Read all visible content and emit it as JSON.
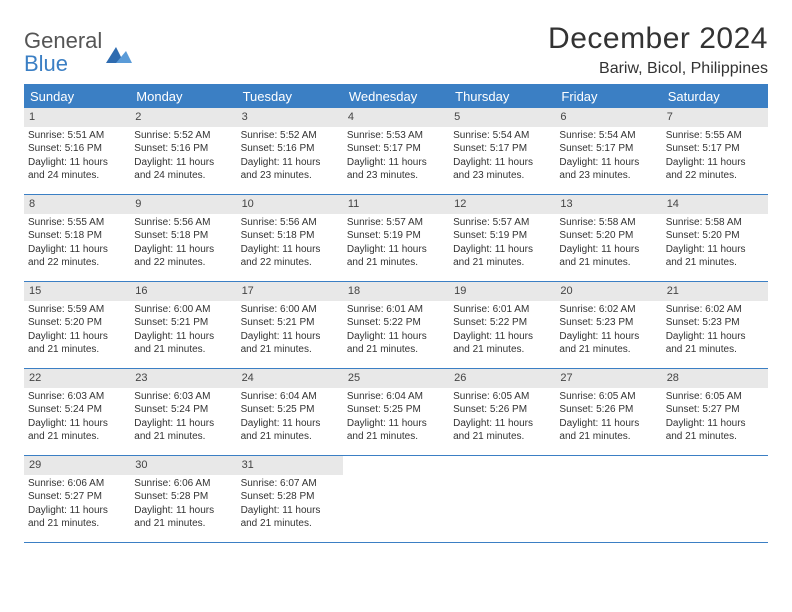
{
  "logo": {
    "text_general": "General",
    "text_blue": "Blue",
    "mark_color": "#3b7fc4"
  },
  "title": "December 2024",
  "location": "Bariw, Bicol, Philippines",
  "colors": {
    "header_bg": "#3b7fc4",
    "header_text": "#ffffff",
    "daynum_bg": "#e8e8e8",
    "text": "#333333",
    "rule": "#3b7fc4",
    "page_bg": "#ffffff"
  },
  "day_headers": [
    "Sunday",
    "Monday",
    "Tuesday",
    "Wednesday",
    "Thursday",
    "Friday",
    "Saturday"
  ],
  "weeks": [
    [
      {
        "num": "1",
        "sunrise": "Sunrise: 5:51 AM",
        "sunset": "Sunset: 5:16 PM",
        "day1": "Daylight: 11 hours",
        "day2": "and 24 minutes."
      },
      {
        "num": "2",
        "sunrise": "Sunrise: 5:52 AM",
        "sunset": "Sunset: 5:16 PM",
        "day1": "Daylight: 11 hours",
        "day2": "and 24 minutes."
      },
      {
        "num": "3",
        "sunrise": "Sunrise: 5:52 AM",
        "sunset": "Sunset: 5:16 PM",
        "day1": "Daylight: 11 hours",
        "day2": "and 23 minutes."
      },
      {
        "num": "4",
        "sunrise": "Sunrise: 5:53 AM",
        "sunset": "Sunset: 5:17 PM",
        "day1": "Daylight: 11 hours",
        "day2": "and 23 minutes."
      },
      {
        "num": "5",
        "sunrise": "Sunrise: 5:54 AM",
        "sunset": "Sunset: 5:17 PM",
        "day1": "Daylight: 11 hours",
        "day2": "and 23 minutes."
      },
      {
        "num": "6",
        "sunrise": "Sunrise: 5:54 AM",
        "sunset": "Sunset: 5:17 PM",
        "day1": "Daylight: 11 hours",
        "day2": "and 23 minutes."
      },
      {
        "num": "7",
        "sunrise": "Sunrise: 5:55 AM",
        "sunset": "Sunset: 5:17 PM",
        "day1": "Daylight: 11 hours",
        "day2": "and 22 minutes."
      }
    ],
    [
      {
        "num": "8",
        "sunrise": "Sunrise: 5:55 AM",
        "sunset": "Sunset: 5:18 PM",
        "day1": "Daylight: 11 hours",
        "day2": "and 22 minutes."
      },
      {
        "num": "9",
        "sunrise": "Sunrise: 5:56 AM",
        "sunset": "Sunset: 5:18 PM",
        "day1": "Daylight: 11 hours",
        "day2": "and 22 minutes."
      },
      {
        "num": "10",
        "sunrise": "Sunrise: 5:56 AM",
        "sunset": "Sunset: 5:18 PM",
        "day1": "Daylight: 11 hours",
        "day2": "and 22 minutes."
      },
      {
        "num": "11",
        "sunrise": "Sunrise: 5:57 AM",
        "sunset": "Sunset: 5:19 PM",
        "day1": "Daylight: 11 hours",
        "day2": "and 21 minutes."
      },
      {
        "num": "12",
        "sunrise": "Sunrise: 5:57 AM",
        "sunset": "Sunset: 5:19 PM",
        "day1": "Daylight: 11 hours",
        "day2": "and 21 minutes."
      },
      {
        "num": "13",
        "sunrise": "Sunrise: 5:58 AM",
        "sunset": "Sunset: 5:20 PM",
        "day1": "Daylight: 11 hours",
        "day2": "and 21 minutes."
      },
      {
        "num": "14",
        "sunrise": "Sunrise: 5:58 AM",
        "sunset": "Sunset: 5:20 PM",
        "day1": "Daylight: 11 hours",
        "day2": "and 21 minutes."
      }
    ],
    [
      {
        "num": "15",
        "sunrise": "Sunrise: 5:59 AM",
        "sunset": "Sunset: 5:20 PM",
        "day1": "Daylight: 11 hours",
        "day2": "and 21 minutes."
      },
      {
        "num": "16",
        "sunrise": "Sunrise: 6:00 AM",
        "sunset": "Sunset: 5:21 PM",
        "day1": "Daylight: 11 hours",
        "day2": "and 21 minutes."
      },
      {
        "num": "17",
        "sunrise": "Sunrise: 6:00 AM",
        "sunset": "Sunset: 5:21 PM",
        "day1": "Daylight: 11 hours",
        "day2": "and 21 minutes."
      },
      {
        "num": "18",
        "sunrise": "Sunrise: 6:01 AM",
        "sunset": "Sunset: 5:22 PM",
        "day1": "Daylight: 11 hours",
        "day2": "and 21 minutes."
      },
      {
        "num": "19",
        "sunrise": "Sunrise: 6:01 AM",
        "sunset": "Sunset: 5:22 PM",
        "day1": "Daylight: 11 hours",
        "day2": "and 21 minutes."
      },
      {
        "num": "20",
        "sunrise": "Sunrise: 6:02 AM",
        "sunset": "Sunset: 5:23 PM",
        "day1": "Daylight: 11 hours",
        "day2": "and 21 minutes."
      },
      {
        "num": "21",
        "sunrise": "Sunrise: 6:02 AM",
        "sunset": "Sunset: 5:23 PM",
        "day1": "Daylight: 11 hours",
        "day2": "and 21 minutes."
      }
    ],
    [
      {
        "num": "22",
        "sunrise": "Sunrise: 6:03 AM",
        "sunset": "Sunset: 5:24 PM",
        "day1": "Daylight: 11 hours",
        "day2": "and 21 minutes."
      },
      {
        "num": "23",
        "sunrise": "Sunrise: 6:03 AM",
        "sunset": "Sunset: 5:24 PM",
        "day1": "Daylight: 11 hours",
        "day2": "and 21 minutes."
      },
      {
        "num": "24",
        "sunrise": "Sunrise: 6:04 AM",
        "sunset": "Sunset: 5:25 PM",
        "day1": "Daylight: 11 hours",
        "day2": "and 21 minutes."
      },
      {
        "num": "25",
        "sunrise": "Sunrise: 6:04 AM",
        "sunset": "Sunset: 5:25 PM",
        "day1": "Daylight: 11 hours",
        "day2": "and 21 minutes."
      },
      {
        "num": "26",
        "sunrise": "Sunrise: 6:05 AM",
        "sunset": "Sunset: 5:26 PM",
        "day1": "Daylight: 11 hours",
        "day2": "and 21 minutes."
      },
      {
        "num": "27",
        "sunrise": "Sunrise: 6:05 AM",
        "sunset": "Sunset: 5:26 PM",
        "day1": "Daylight: 11 hours",
        "day2": "and 21 minutes."
      },
      {
        "num": "28",
        "sunrise": "Sunrise: 6:05 AM",
        "sunset": "Sunset: 5:27 PM",
        "day1": "Daylight: 11 hours",
        "day2": "and 21 minutes."
      }
    ],
    [
      {
        "num": "29",
        "sunrise": "Sunrise: 6:06 AM",
        "sunset": "Sunset: 5:27 PM",
        "day1": "Daylight: 11 hours",
        "day2": "and 21 minutes."
      },
      {
        "num": "30",
        "sunrise": "Sunrise: 6:06 AM",
        "sunset": "Sunset: 5:28 PM",
        "day1": "Daylight: 11 hours",
        "day2": "and 21 minutes."
      },
      {
        "num": "31",
        "sunrise": "Sunrise: 6:07 AM",
        "sunset": "Sunset: 5:28 PM",
        "day1": "Daylight: 11 hours",
        "day2": "and 21 minutes."
      },
      null,
      null,
      null,
      null
    ]
  ]
}
